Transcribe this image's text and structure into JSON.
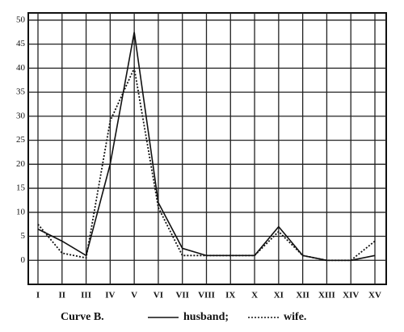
{
  "chart_data": {
    "type": "line",
    "title": "Curve B.",
    "categories": [
      "I",
      "II",
      "III",
      "IV",
      "V",
      "VI",
      "VII",
      "VIII",
      "IX",
      "X",
      "XI",
      "XII",
      "XIII",
      "XIV",
      "XV"
    ],
    "series": [
      {
        "name": "husband;",
        "color": "#111111",
        "style": "solid",
        "values": [
          6.5,
          4,
          1,
          20,
          47.5,
          12,
          2.5,
          1,
          1,
          1,
          7,
          1,
          0,
          0,
          1
        ]
      },
      {
        "name": "wife.",
        "color": "#111111",
        "style": "dotted",
        "values": [
          7.5,
          1.5,
          0.5,
          29,
          40,
          11,
          1,
          1,
          1,
          1,
          6,
          1,
          0,
          0,
          4
        ]
      }
    ],
    "ylim": [
      -5,
      51.5
    ],
    "yticks": [
      0,
      5,
      10,
      15,
      20,
      25,
      30,
      35,
      40,
      45,
      50
    ],
    "grid": true
  }
}
